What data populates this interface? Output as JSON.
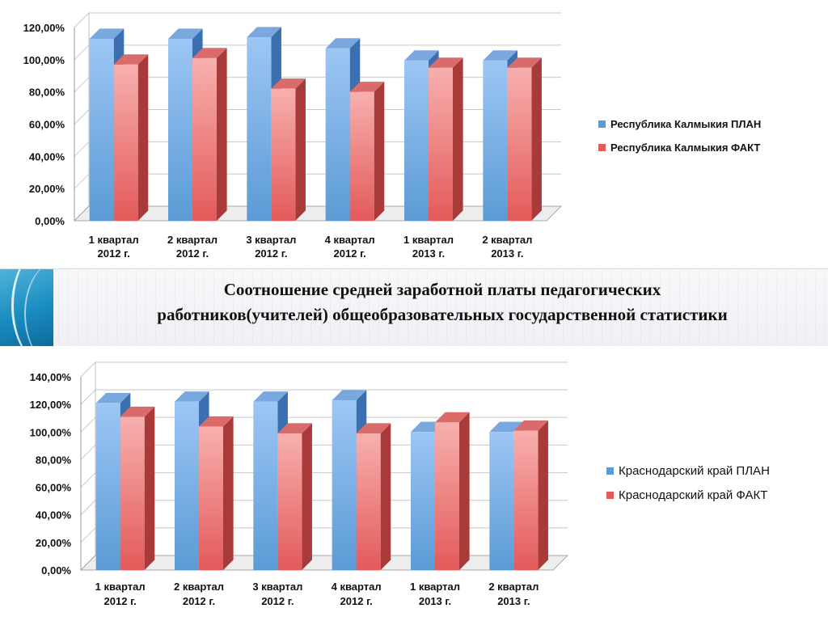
{
  "title": {
    "line1": "Соотношение средней заработной платы педагогических",
    "line2": "работников(учителей) общеобразовательных государственной статистики"
  },
  "chart_data": [
    {
      "type": "bar",
      "categories": [
        "1 квартал 2012 г.",
        "2 квартал 2012 г.",
        "3 квартал 2012 г.",
        "4 квартал 2012 г.",
        "1 квартал 2013 г.",
        "2 квартал 2013 г."
      ],
      "series": [
        {
          "name": "Республика Калмыкия ПЛАН",
          "values": [
            113,
            113,
            114,
            107,
            99.5,
            99.5
          ]
        },
        {
          "name": "Республика Калмыкия ФАКТ",
          "values": [
            97,
            101,
            82,
            80,
            95,
            95
          ]
        }
      ],
      "yticks": [
        "0,00%",
        "20,00%",
        "40,00%",
        "60,00%",
        "80,00%",
        "100,00%",
        "120,00%"
      ],
      "ylim": [
        0,
        120
      ],
      "legend_position": "right",
      "grid": true,
      "colors": {
        "plan": "#5b9bd5",
        "fact": "#e35a5a"
      }
    },
    {
      "type": "bar",
      "categories": [
        "1 квартал 2012 г.",
        "2 квартал 2012 г.",
        "3 квартал 2012 г.",
        "4 квартал 2012 г.",
        "1 квартал 2013 г.",
        "2 квартал 2013 г."
      ],
      "series": [
        {
          "name": "Краснодарский край ПЛАН",
          "values": [
            121,
            122,
            122,
            123,
            100,
            100
          ]
        },
        {
          "name": "Краснодарский край ФАКТ",
          "values": [
            111,
            104,
            99,
            99,
            107,
            101
          ]
        }
      ],
      "yticks": [
        "0,00%",
        "20,00%",
        "40,00%",
        "60,00%",
        "80,00%",
        "100,00%",
        "120,00%",
        "140,00%"
      ],
      "ylim": [
        0,
        140
      ],
      "legend_position": "right",
      "grid": true,
      "colors": {
        "plan": "#5b9bd5",
        "fact": "#e35a5a"
      }
    }
  ]
}
